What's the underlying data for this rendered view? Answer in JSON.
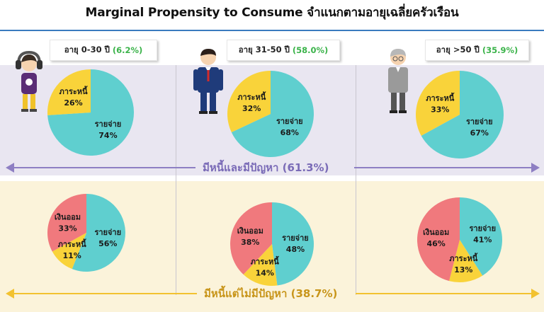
{
  "title": "Marginal Propensity to Consume จำแนกตามอายุเฉลี่ยครัวเรือน",
  "groups": [
    {
      "label": "อายุ 0-30 ปี",
      "pct": "(6.2%)"
    },
    {
      "label": "อายุ 31-50 ปี",
      "pct": "(58.0%)"
    },
    {
      "label": "อายุ >50 ปี",
      "pct": "(35.9%)"
    }
  ],
  "bands": {
    "top": "มีหนี้และมีปัญหา (61.3%)",
    "bottom": "มีหนี้แต่ไม่มีปัญหา (38.7%)"
  },
  "colors": {
    "spending": "#5fcfcf",
    "debt": "#f9d33a",
    "saving": "#f0797d",
    "top_band": "#8e7fc3",
    "bottom_band": "#f2c230",
    "badge_pct": "#3bb34a"
  },
  "chart_data": [
    {
      "type": "pie",
      "group": "อายุ 0-30 ปี",
      "row": "มีหนี้และมีปัญหา (61.3%)",
      "slices": [
        {
          "label": "รายจ่าย",
          "value": 74,
          "text": "74%"
        },
        {
          "label": "ภาระหนี้",
          "value": 26,
          "text": "26%"
        }
      ]
    },
    {
      "type": "pie",
      "group": "อายุ 31-50 ปี",
      "row": "มีหนี้และมีปัญหา (61.3%)",
      "slices": [
        {
          "label": "รายจ่าย",
          "value": 68,
          "text": "68%"
        },
        {
          "label": "ภาระหนี้",
          "value": 32,
          "text": "32%"
        }
      ]
    },
    {
      "type": "pie",
      "group": "อายุ >50 ปี",
      "row": "มีหนี้และมีปัญหา (61.3%)",
      "slices": [
        {
          "label": "รายจ่าย",
          "value": 67,
          "text": "67%"
        },
        {
          "label": "ภาระหนี้",
          "value": 33,
          "text": "33%"
        }
      ]
    },
    {
      "type": "pie",
      "group": "อายุ 0-30 ปี",
      "row": "มีหนี้แต่ไม่มีปัญหา (38.7%)",
      "slices": [
        {
          "label": "รายจ่าย",
          "value": 56,
          "text": "56%"
        },
        {
          "label": "ภาระหนี้",
          "value": 11,
          "text": "11%"
        },
        {
          "label": "เงินออม",
          "value": 33,
          "text": "33%"
        }
      ]
    },
    {
      "type": "pie",
      "group": "อายุ 31-50 ปี",
      "row": "มีหนี้แต่ไม่มีปัญหา (38.7%)",
      "slices": [
        {
          "label": "รายจ่าย",
          "value": 48,
          "text": "48%"
        },
        {
          "label": "ภาระหนี้",
          "value": 14,
          "text": "14%"
        },
        {
          "label": "เงินออม",
          "value": 38,
          "text": "38%"
        }
      ]
    },
    {
      "type": "pie",
      "group": "อายุ >50 ปี",
      "row": "มีหนี้แต่ไม่มีปัญหา (38.7%)",
      "slices": [
        {
          "label": "รายจ่าย",
          "value": 41,
          "text": "41%"
        },
        {
          "label": "ภาระหนี้",
          "value": 13,
          "text": "13%"
        },
        {
          "label": "เงินออม",
          "value": 46,
          "text": "46%"
        }
      ]
    }
  ]
}
